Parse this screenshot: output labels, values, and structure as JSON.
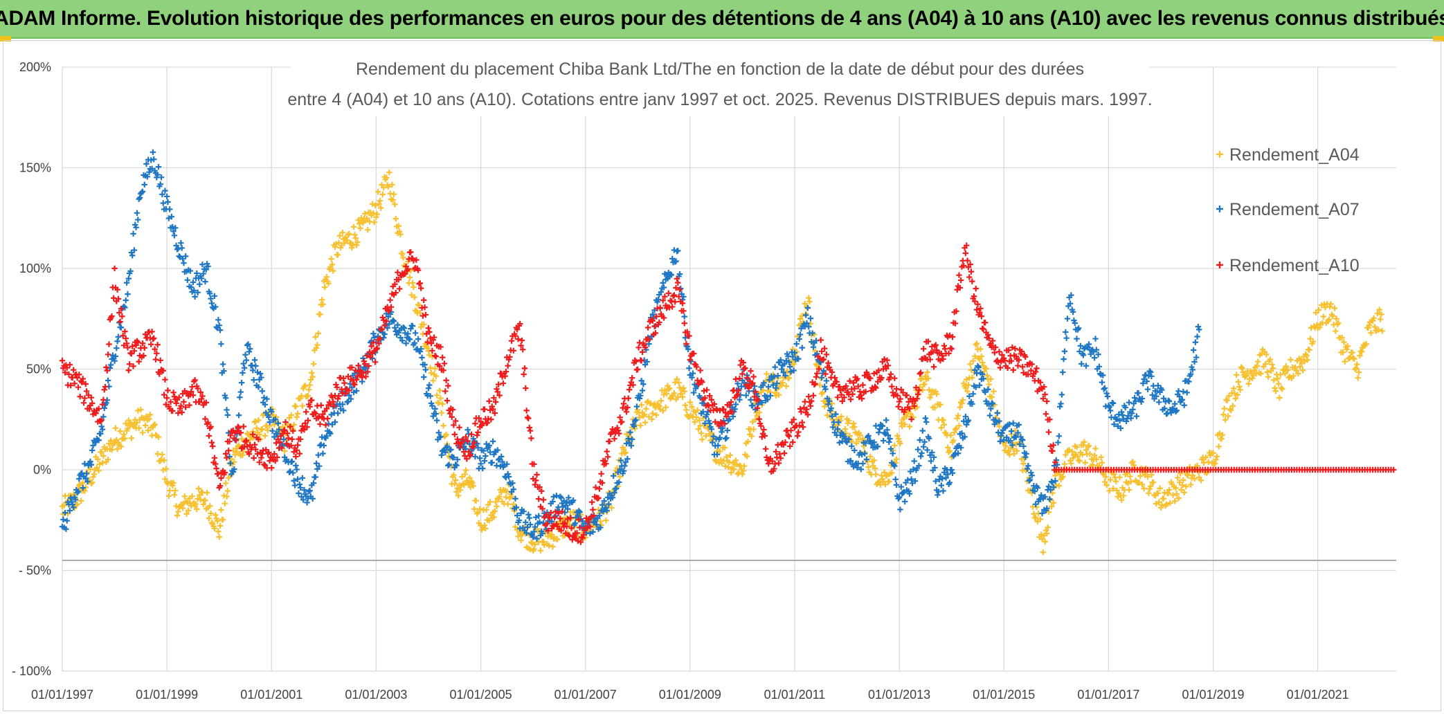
{
  "header": {
    "title": "ADAM Informe. Evolution historique des performances en euros pour des détentions de 4 ans (A04) à 10 ans (A10) avec les revenus connus distribués"
  },
  "colors": {
    "banner": "#8fd17d",
    "a04": "#f7c030",
    "a07": "#1f77c4",
    "a10": "#ee1c1c",
    "grid": "#d9d9d9"
  },
  "chart_data": {
    "type": "scatter",
    "title_line1": "Rendement du placement Chiba Bank Ltd/The en fonction de la date de début pour des durées",
    "title_line2": "entre 4 (A04) et 10 ans (A10). Cotations entre janv 1997 et oct. 2025. Revenus DISTRIBUES depuis mars. 1997.",
    "xlabel": "",
    "ylabel": "",
    "xlim": [
      1997.0,
      2022.5
    ],
    "ylim": [
      -100,
      200
    ],
    "y_ticks": [
      {
        "value": 200,
        "label": "200%"
      },
      {
        "value": 150,
        "label": "150%"
      },
      {
        "value": 100,
        "label": "100%"
      },
      {
        "value": 50,
        "label": "50%"
      },
      {
        "value": 0,
        "label": "0%"
      },
      {
        "value": -50,
        "label": "- 50%"
      },
      {
        "value": -100,
        "label": "- 100%"
      }
    ],
    "x_ticks": [
      {
        "value": 1997,
        "label": "01/01/1997"
      },
      {
        "value": 1999,
        "label": "01/01/1999"
      },
      {
        "value": 2001,
        "label": "01/01/2001"
      },
      {
        "value": 2003,
        "label": "01/01/2003"
      },
      {
        "value": 2005,
        "label": "01/01/2005"
      },
      {
        "value": 2007,
        "label": "01/01/2007"
      },
      {
        "value": 2009,
        "label": "01/01/2009"
      },
      {
        "value": 2011,
        "label": "01/01/2011"
      },
      {
        "value": 2013,
        "label": "01/01/2013"
      },
      {
        "value": 2015,
        "label": "01/01/2015"
      },
      {
        "value": 2017,
        "label": "01/01/2017"
      },
      {
        "value": 2019,
        "label": "01/01/2019"
      },
      {
        "value": 2021,
        "label": "01/01/2021"
      }
    ],
    "legend_position": "right",
    "series": [
      {
        "name": "Rendement_A04",
        "color": "#f7c030",
        "x": [
          1997.0,
          1997.25,
          1997.5,
          1997.75,
          1998.0,
          1998.25,
          1998.5,
          1998.75,
          1999.0,
          1999.25,
          1999.5,
          1999.75,
          2000.0,
          2000.25,
          2000.5,
          2000.75,
          2001.0,
          2001.25,
          2001.5,
          2001.75,
          2002.0,
          2002.25,
          2002.5,
          2002.75,
          2003.0,
          2003.25,
          2003.5,
          2003.75,
          2004.0,
          2004.25,
          2004.5,
          2004.75,
          2005.0,
          2005.25,
          2005.5,
          2005.75,
          2006.0,
          2006.25,
          2006.5,
          2006.75,
          2007.0,
          2007.25,
          2007.5,
          2007.75,
          2008.0,
          2008.25,
          2008.5,
          2008.75,
          2009.0,
          2009.25,
          2009.5,
          2009.75,
          2010.0,
          2010.25,
          2010.5,
          2010.75,
          2011.0,
          2011.25,
          2011.5,
          2011.75,
          2012.0,
          2012.25,
          2012.5,
          2012.75,
          2013.0,
          2013.25,
          2013.5,
          2013.75,
          2014.0,
          2014.25,
          2014.5,
          2014.75,
          2015.0,
          2015.25,
          2015.5,
          2015.75,
          2016.0,
          2016.25,
          2016.5,
          2016.75,
          2017.0,
          2017.25,
          2017.5,
          2017.75,
          2018.0,
          2018.25,
          2018.5,
          2018.75,
          2019.0,
          2019.25,
          2019.5,
          2019.75,
          2020.0,
          2020.25,
          2020.5,
          2020.75,
          2021.0,
          2021.25,
          2021.5,
          2021.75,
          2022.0,
          2022.25
        ],
        "y": [
          -20,
          -15,
          -5,
          5,
          15,
          20,
          25,
          20,
          -5,
          -20,
          -15,
          -15,
          -30,
          5,
          15,
          20,
          25,
          15,
          30,
          45,
          90,
          110,
          115,
          120,
          130,
          145,
          110,
          85,
          60,
          30,
          -10,
          -5,
          -25,
          -20,
          -10,
          -30,
          -35,
          -35,
          -30,
          -25,
          -30,
          -25,
          -15,
          10,
          25,
          30,
          35,
          40,
          30,
          20,
          10,
          5,
          0,
          30,
          45,
          40,
          60,
          85,
          40,
          25,
          20,
          15,
          0,
          -5,
          15,
          30,
          45,
          30,
          10,
          40,
          60,
          40,
          10,
          15,
          -10,
          -35,
          -5,
          5,
          10,
          5,
          -5,
          -10,
          0,
          -5,
          -15,
          -10,
          -5,
          0,
          5,
          30,
          45,
          50,
          55,
          40,
          50,
          55,
          75,
          80,
          60,
          50,
          70,
          75
        ]
      },
      {
        "name": "Rendement_A07",
        "color": "#1f77c4",
        "x": [
          1997.0,
          1997.25,
          1997.5,
          1997.75,
          1998.0,
          1998.25,
          1998.5,
          1998.75,
          1999.0,
          1999.25,
          1999.5,
          1999.75,
          2000.0,
          2000.25,
          2000.5,
          2000.75,
          2001.0,
          2001.25,
          2001.5,
          2001.75,
          2002.0,
          2002.25,
          2002.5,
          2002.75,
          2003.0,
          2003.25,
          2003.5,
          2003.75,
          2004.0,
          2004.25,
          2004.5,
          2004.75,
          2005.0,
          2005.25,
          2005.5,
          2005.75,
          2006.0,
          2006.25,
          2006.5,
          2006.75,
          2007.0,
          2007.25,
          2007.5,
          2007.75,
          2008.0,
          2008.25,
          2008.5,
          2008.75,
          2009.0,
          2009.25,
          2009.5,
          2009.75,
          2010.0,
          2010.25,
          2010.5,
          2010.75,
          2011.0,
          2011.25,
          2011.5,
          2011.75,
          2012.0,
          2012.25,
          2012.5,
          2012.75,
          2013.0,
          2013.25,
          2013.5,
          2013.75,
          2014.0,
          2014.25,
          2014.5,
          2014.75,
          2015.0,
          2015.25,
          2015.5,
          2015.75,
          2016.0,
          2016.25,
          2016.5,
          2016.75,
          2017.0,
          2017.25,
          2017.5,
          2017.75,
          2018.0,
          2018.25,
          2018.5,
          2018.75
        ],
        "y": [
          -30,
          -10,
          0,
          20,
          60,
          90,
          140,
          155,
          130,
          110,
          90,
          100,
          70,
          -5,
          60,
          45,
          25,
          10,
          -5,
          -15,
          15,
          30,
          40,
          50,
          65,
          75,
          70,
          65,
          40,
          10,
          5,
          15,
          5,
          10,
          0,
          -25,
          -30,
          -25,
          -15,
          -20,
          -30,
          -25,
          -10,
          5,
          30,
          70,
          90,
          110,
          50,
          30,
          10,
          25,
          45,
          35,
          40,
          50,
          55,
          75,
          50,
          25,
          10,
          5,
          15,
          20,
          -15,
          -5,
          20,
          -10,
          0,
          20,
          50,
          30,
          15,
          20,
          -5,
          -20,
          0,
          90,
          55,
          60,
          30,
          25,
          30,
          45,
          35,
          30,
          40,
          70
        ]
      },
      {
        "name": "Rendement_A10",
        "color": "#ee1c1c",
        "x": [
          1997.0,
          1997.25,
          1997.5,
          1997.75,
          1998.0,
          1998.25,
          1998.5,
          1998.75,
          1999.0,
          1999.25,
          1999.5,
          1999.75,
          2000.0,
          2000.25,
          2000.5,
          2000.75,
          2001.0,
          2001.25,
          2001.5,
          2001.75,
          2002.0,
          2002.25,
          2002.5,
          2002.75,
          2003.0,
          2003.25,
          2003.5,
          2003.75,
          2004.0,
          2004.25,
          2004.5,
          2004.75,
          2005.0,
          2005.25,
          2005.5,
          2005.75,
          2006.0,
          2006.25,
          2006.5,
          2006.75,
          2007.0,
          2007.25,
          2007.5,
          2007.75,
          2008.0,
          2008.25,
          2008.5,
          2008.75,
          2009.0,
          2009.25,
          2009.5,
          2009.75,
          2010.0,
          2010.25,
          2010.5,
          2010.75,
          2011.0,
          2011.25,
          2011.5,
          2011.75,
          2012.0,
          2012.25,
          2012.5,
          2012.75,
          2013.0,
          2013.25,
          2013.5,
          2013.75,
          2014.0,
          2014.25,
          2014.5,
          2014.75,
          2015.0,
          2015.25,
          2015.5,
          2015.75,
          2016.0,
          2016.5,
          2017.0,
          2017.5,
          2018.0,
          2018.5,
          2019.0,
          2019.5,
          2020.0,
          2020.5,
          2021.0,
          2021.5,
          2022.0,
          2022.5
        ],
        "y": [
          50,
          45,
          35,
          25,
          95,
          55,
          60,
          65,
          35,
          30,
          40,
          30,
          -10,
          20,
          15,
          10,
          5,
          20,
          10,
          30,
          25,
          40,
          45,
          50,
          60,
          80,
          100,
          105,
          65,
          55,
          20,
          10,
          25,
          30,
          55,
          70,
          0,
          -25,
          -25,
          -30,
          -30,
          -10,
          15,
          30,
          55,
          70,
          80,
          90,
          60,
          40,
          25,
          30,
          50,
          40,
          0,
          10,
          20,
          30,
          60,
          40,
          40,
          40,
          45,
          50,
          35,
          30,
          60,
          55,
          65,
          110,
          80,
          60,
          55,
          55,
          50,
          40,
          0,
          0,
          0,
          0,
          0,
          0,
          0,
          0,
          0,
          0,
          0,
          0,
          0,
          0
        ]
      }
    ]
  }
}
